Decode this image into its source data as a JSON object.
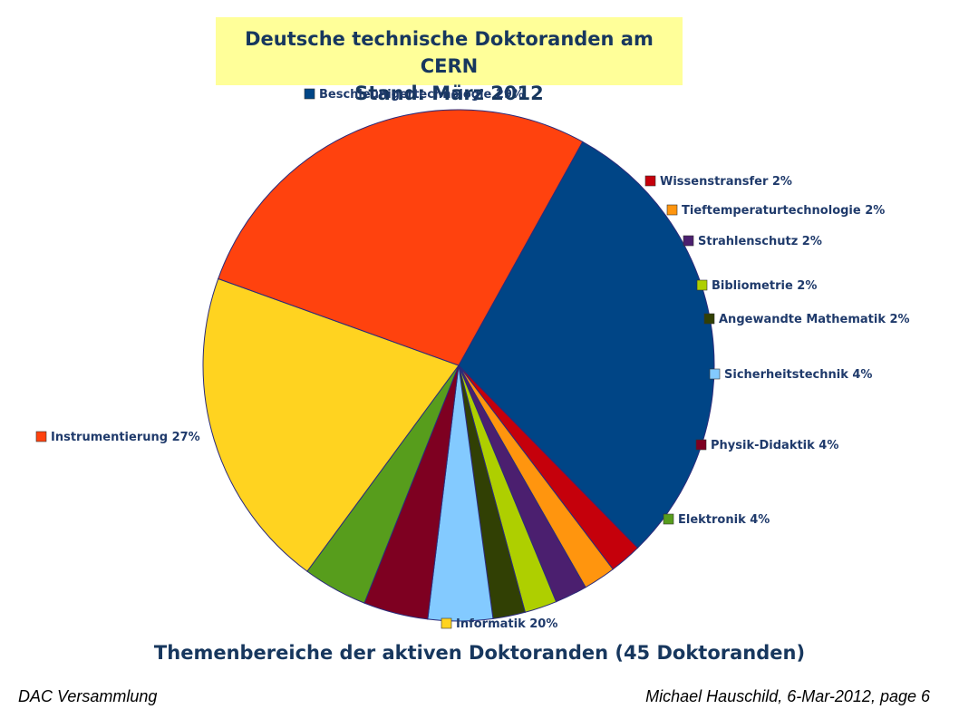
{
  "slide": {
    "title_line1": "Deutsche technische Doktoranden am CERN",
    "title_line2": "Stand: März 2012",
    "caption": "Themenbereiche der aktiven Doktoranden (45 Doktoranden)",
    "footer_left": "DAC Versammlung",
    "footer_right": "Michael Hauschild, 6-Mar-2012,  page 6"
  },
  "chart_data": {
    "type": "pie",
    "title": "Deutsche technische Doktoranden am CERN",
    "subtitle": "Stand: März 2012",
    "caption": "Themenbereiche der aktiven Doktoranden (45 Doktoranden)",
    "slices": [
      {
        "name": "Beschleunigertechnologie",
        "value": 29,
        "label": "Beschleunigertechnologie 29%",
        "color": "#004586"
      },
      {
        "name": "Wissenstransfer",
        "value": 2,
        "label": "Wissenstransfer 2%",
        "color": "#c5000b"
      },
      {
        "name": "Tieftemperaturtechnologie",
        "value": 2,
        "label": "Tieftemperaturtechnologie 2%",
        "color": "#ff950e"
      },
      {
        "name": "Strahlenschutz",
        "value": 2,
        "label": "Strahlenschutz 2%",
        "color": "#4b1f6f"
      },
      {
        "name": "Bibliometrie",
        "value": 2,
        "label": "Bibliometrie 2%",
        "color": "#aecf00"
      },
      {
        "name": "Angewandte Mathematik",
        "value": 2,
        "label": "Angewandte Mathematik 2%",
        "color": "#314004"
      },
      {
        "name": "Sicherheitstechnik",
        "value": 4,
        "label": "Sicherheitstechnik 4%",
        "color": "#83caff"
      },
      {
        "name": "Physik-Didaktik",
        "value": 4,
        "label": "Physik-Didaktik 4%",
        "color": "#7e0021"
      },
      {
        "name": "Elektronik",
        "value": 4,
        "label": "Elektronik 4%",
        "color": "#579d1c"
      },
      {
        "name": "Informatik",
        "value": 20,
        "label": "Informatik 20%",
        "color": "#ffd320"
      },
      {
        "name": "Instrumentierung",
        "value": 27,
        "label": "Instrumentierung 27%",
        "color": "#ff420e"
      }
    ],
    "start_angle_deg": -61,
    "direction": "clockwise"
  }
}
